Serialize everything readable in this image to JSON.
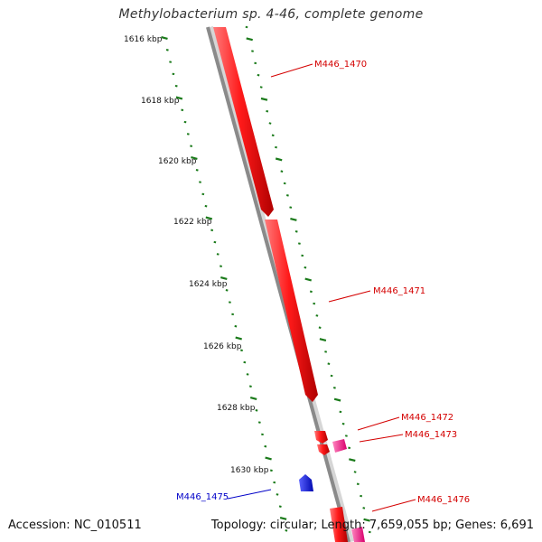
{
  "title": "Methylobacterium sp. 4-46, complete genome",
  "footer": {
    "accession": "Accession: NC_010511",
    "summary": "Topology: circular; Length: 7,659,055 bp; Genes: 6,691"
  },
  "colors": {
    "forward_gene": "#ff1a1a",
    "forward_gene_alt": "#ff2d8f",
    "reverse_gene": "#0a12e6",
    "backbone": "#8a8a8a",
    "ruler_ticks": "#1a7a1a",
    "label_forward": "#d40000",
    "label_reverse": "#0000c8"
  },
  "ruler": {
    "unit": "kbp",
    "labels": [
      "1616 kbp",
      "1618 kbp",
      "1620 kbp",
      "1622 kbp",
      "1624 kbp",
      "1626 kbp",
      "1628 kbp",
      "1630 kbp"
    ]
  },
  "genes": [
    {
      "id": "M446_1470",
      "strand": "+",
      "color": "forward_gene"
    },
    {
      "id": "M446_1471",
      "strand": "+",
      "color": "forward_gene"
    },
    {
      "id": "M446_1472",
      "strand": "+",
      "color": "forward_gene"
    },
    {
      "id": "M446_1473",
      "strand": "+",
      "color": "forward_gene_alt"
    },
    {
      "id": "M446_1475",
      "strand": "-",
      "color": "reverse_gene"
    },
    {
      "id": "M446_1476",
      "strand": "+",
      "color": "forward_gene"
    }
  ]
}
